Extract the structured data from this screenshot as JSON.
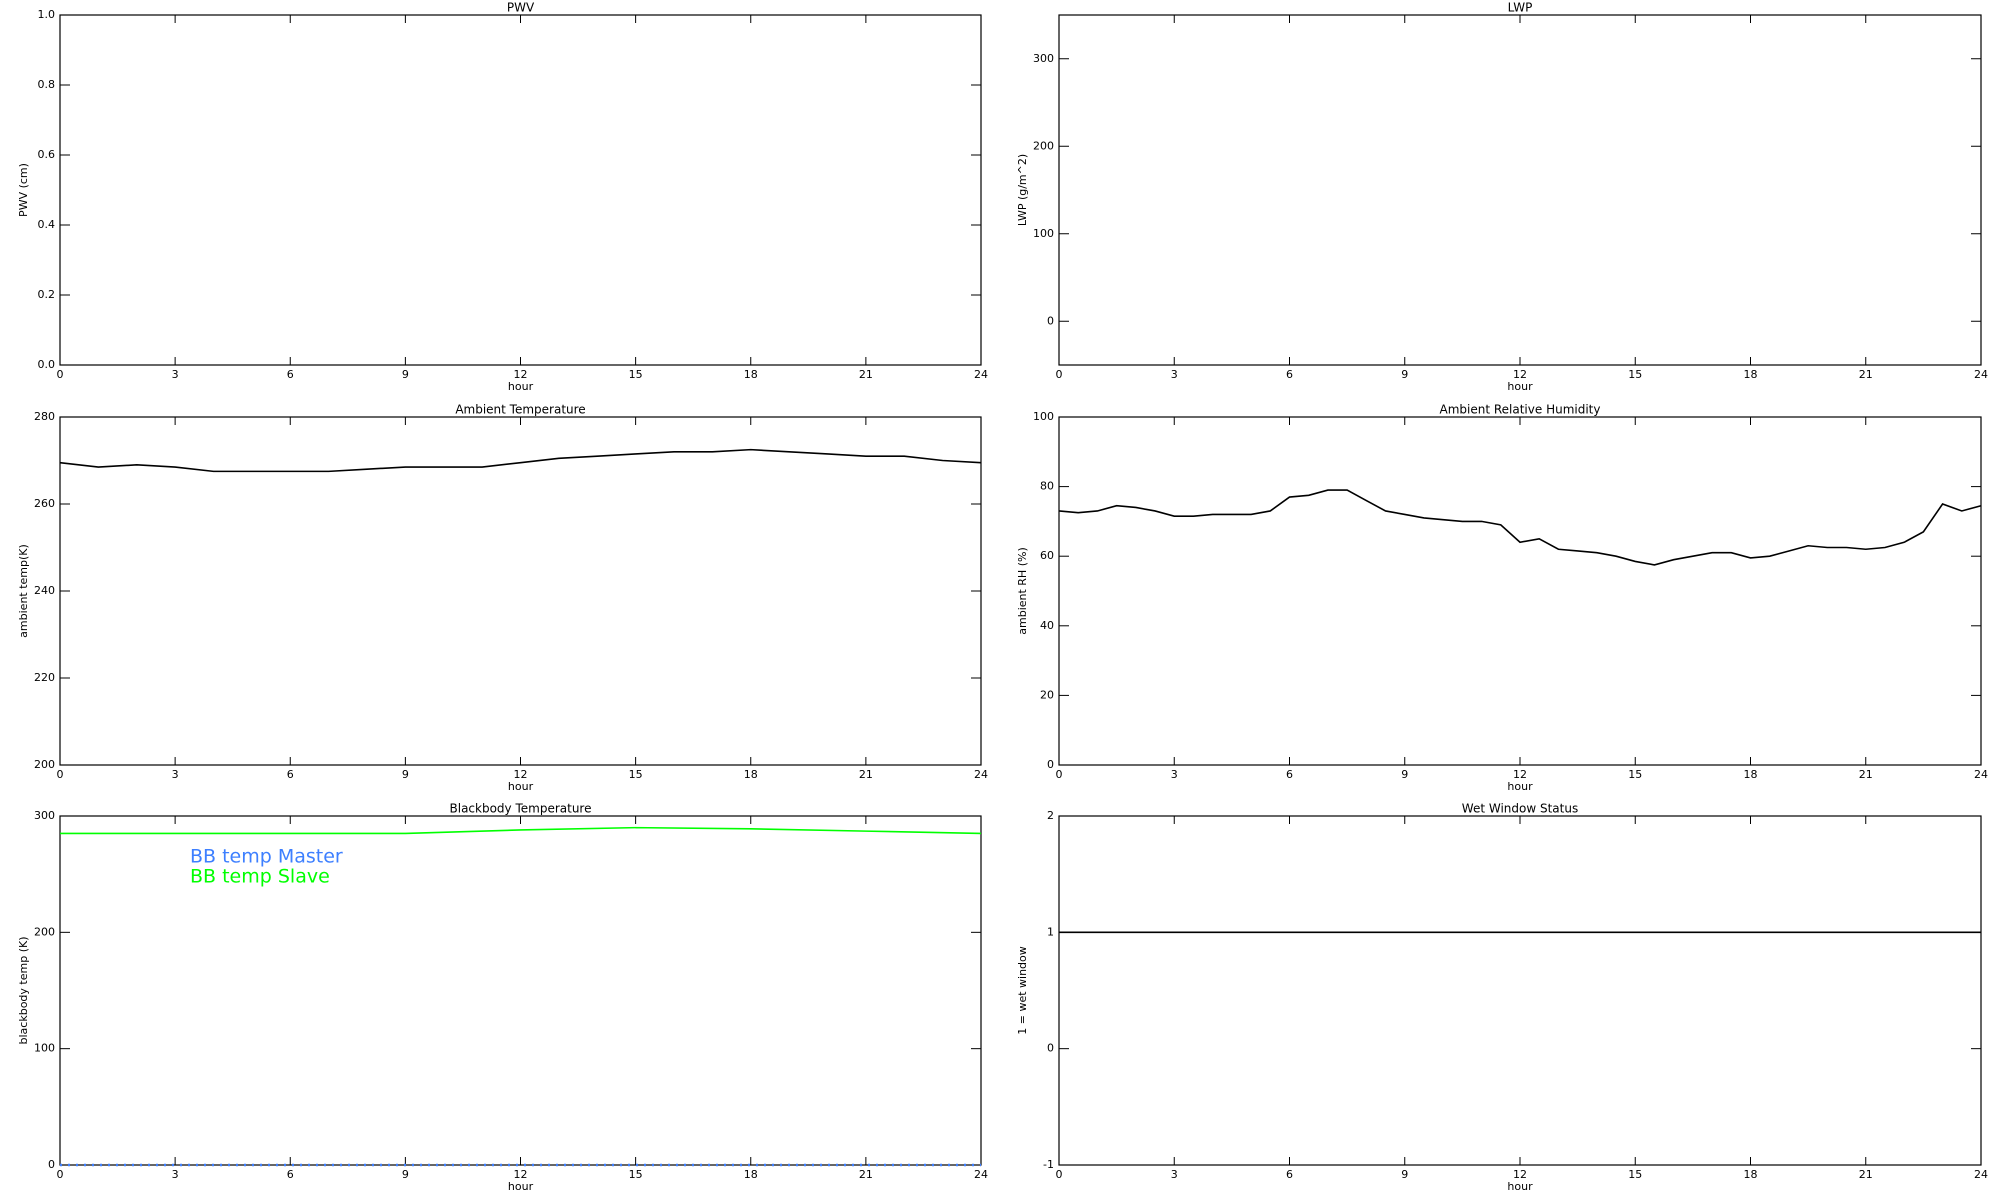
{
  "chart_data": [
    {
      "type": "line",
      "title": "PWV",
      "xlabel": "hour",
      "ylabel": "PWV (cm)",
      "xlim": [
        0,
        24
      ],
      "xticks": [
        0,
        3,
        6,
        9,
        12,
        15,
        18,
        21,
        24
      ],
      "ylim": [
        0,
        1
      ],
      "yticks": [
        {
          "value": 0,
          "label": "0.0"
        },
        0.2,
        0.4,
        0.6,
        0.8,
        {
          "value": 1,
          "label": "1.0"
        }
      ]
    },
    {
      "type": "line",
      "title": "LWP",
      "xlabel": "hour",
      "ylabel": "LWP (g/m^2)",
      "xlim": [
        0,
        24
      ],
      "xticks": [
        0,
        3,
        6,
        9,
        12,
        15,
        18,
        21,
        24
      ],
      "ylim": [
        -50,
        350
      ],
      "yticks": [
        0,
        100,
        200,
        300
      ]
    },
    {
      "type": "line",
      "title": "Ambient Temperature",
      "xlabel": "hour",
      "ylabel": "ambient temp(K)",
      "xlim": [
        0,
        24
      ],
      "xticks": [
        0,
        3,
        6,
        9,
        12,
        15,
        18,
        21,
        24
      ],
      "ylim": [
        200,
        280
      ],
      "yticks": [
        200,
        220,
        240,
        260,
        280
      ],
      "x": [
        0,
        1,
        2,
        3,
        4,
        5,
        6,
        7,
        8,
        9,
        10,
        11,
        12,
        13,
        14,
        15,
        16,
        17,
        18,
        19,
        20,
        21,
        22,
        23,
        24
      ],
      "series": [
        {
          "color": "#000000",
          "values": [
            269.5,
            268.5,
            269,
            268.5,
            267.5,
            267.5,
            267.5,
            267.5,
            268,
            268.5,
            268.5,
            268.5,
            269.5,
            270.5,
            271,
            271.5,
            272,
            272,
            272.5,
            272,
            271.5,
            271,
            271,
            270,
            269.5
          ]
        }
      ]
    },
    {
      "type": "line",
      "title": "Ambient Relative Humidity",
      "xlabel": "hour",
      "ylabel": "ambient RH (%)",
      "xlim": [
        0,
        24
      ],
      "xticks": [
        0,
        3,
        6,
        9,
        12,
        15,
        18,
        21,
        24
      ],
      "ylim": [
        0,
        100
      ],
      "yticks": [
        0,
        20,
        40,
        60,
        80,
        100
      ],
      "x": [
        0,
        0.5,
        1,
        1.5,
        2,
        2.5,
        3,
        3.5,
        4,
        4.5,
        5,
        5.5,
        6,
        6.5,
        7,
        7.5,
        8,
        8.5,
        9,
        9.5,
        10,
        10.5,
        11,
        11.5,
        12,
        12.5,
        13,
        13.5,
        14,
        14.5,
        15,
        15.5,
        16,
        16.5,
        17,
        17.5,
        18,
        18.5,
        19,
        19.5,
        20,
        20.5,
        21,
        21.5,
        22,
        22.5,
        23,
        23.5,
        24
      ],
      "series": [
        {
          "color": "#000000",
          "values": [
            73,
            72.5,
            73,
            74.5,
            74,
            73,
            71.5,
            71.5,
            72,
            72,
            72,
            73,
            77,
            77.5,
            79,
            79,
            76,
            73,
            72,
            71,
            70.5,
            70,
            70,
            69,
            64,
            65,
            62,
            61.5,
            61,
            60,
            58.5,
            57.5,
            59,
            60,
            61,
            61,
            59.5,
            60,
            61.5,
            63,
            62.5,
            62.5,
            62,
            62.5,
            64,
            67,
            75,
            73,
            74.5
          ]
        }
      ]
    },
    {
      "type": "line",
      "title": "Blackbody Temperature",
      "xlabel": "hour",
      "ylabel": "blackbody temp (K)",
      "xlim": [
        0,
        24
      ],
      "xticks": [
        0,
        3,
        6,
        9,
        12,
        15,
        18,
        21,
        24
      ],
      "ylim": [
        0,
        300
      ],
      "yticks": [
        0,
        100,
        200,
        300
      ],
      "legend": "upper left",
      "x": [
        0,
        3,
        6,
        9,
        12,
        15,
        18,
        21,
        24
      ],
      "series": [
        {
          "name": "BB temp Master",
          "color": "#3d7fff",
          "linestyle": "dotted",
          "values": [
            0,
            0,
            0,
            0,
            0,
            0,
            0,
            0,
            0
          ]
        },
        {
          "name": "BB temp Slave",
          "color": "#00ff00",
          "linestyle": "solid",
          "values": [
            285,
            285,
            285,
            285,
            288,
            290,
            289,
            287,
            285
          ]
        }
      ]
    },
    {
      "type": "line",
      "title": "Wet Window Status",
      "xlabel": "hour",
      "ylabel": "1 = wet window",
      "xlim": [
        0,
        24
      ],
      "xticks": [
        0,
        3,
        6,
        9,
        12,
        15,
        18,
        21,
        24
      ],
      "ylim": [
        -1,
        2
      ],
      "yticks": [
        -1,
        0,
        1,
        2
      ],
      "x": [
        0,
        24
      ],
      "series": [
        {
          "color": "#000000",
          "values": [
            1,
            1
          ]
        }
      ]
    }
  ]
}
